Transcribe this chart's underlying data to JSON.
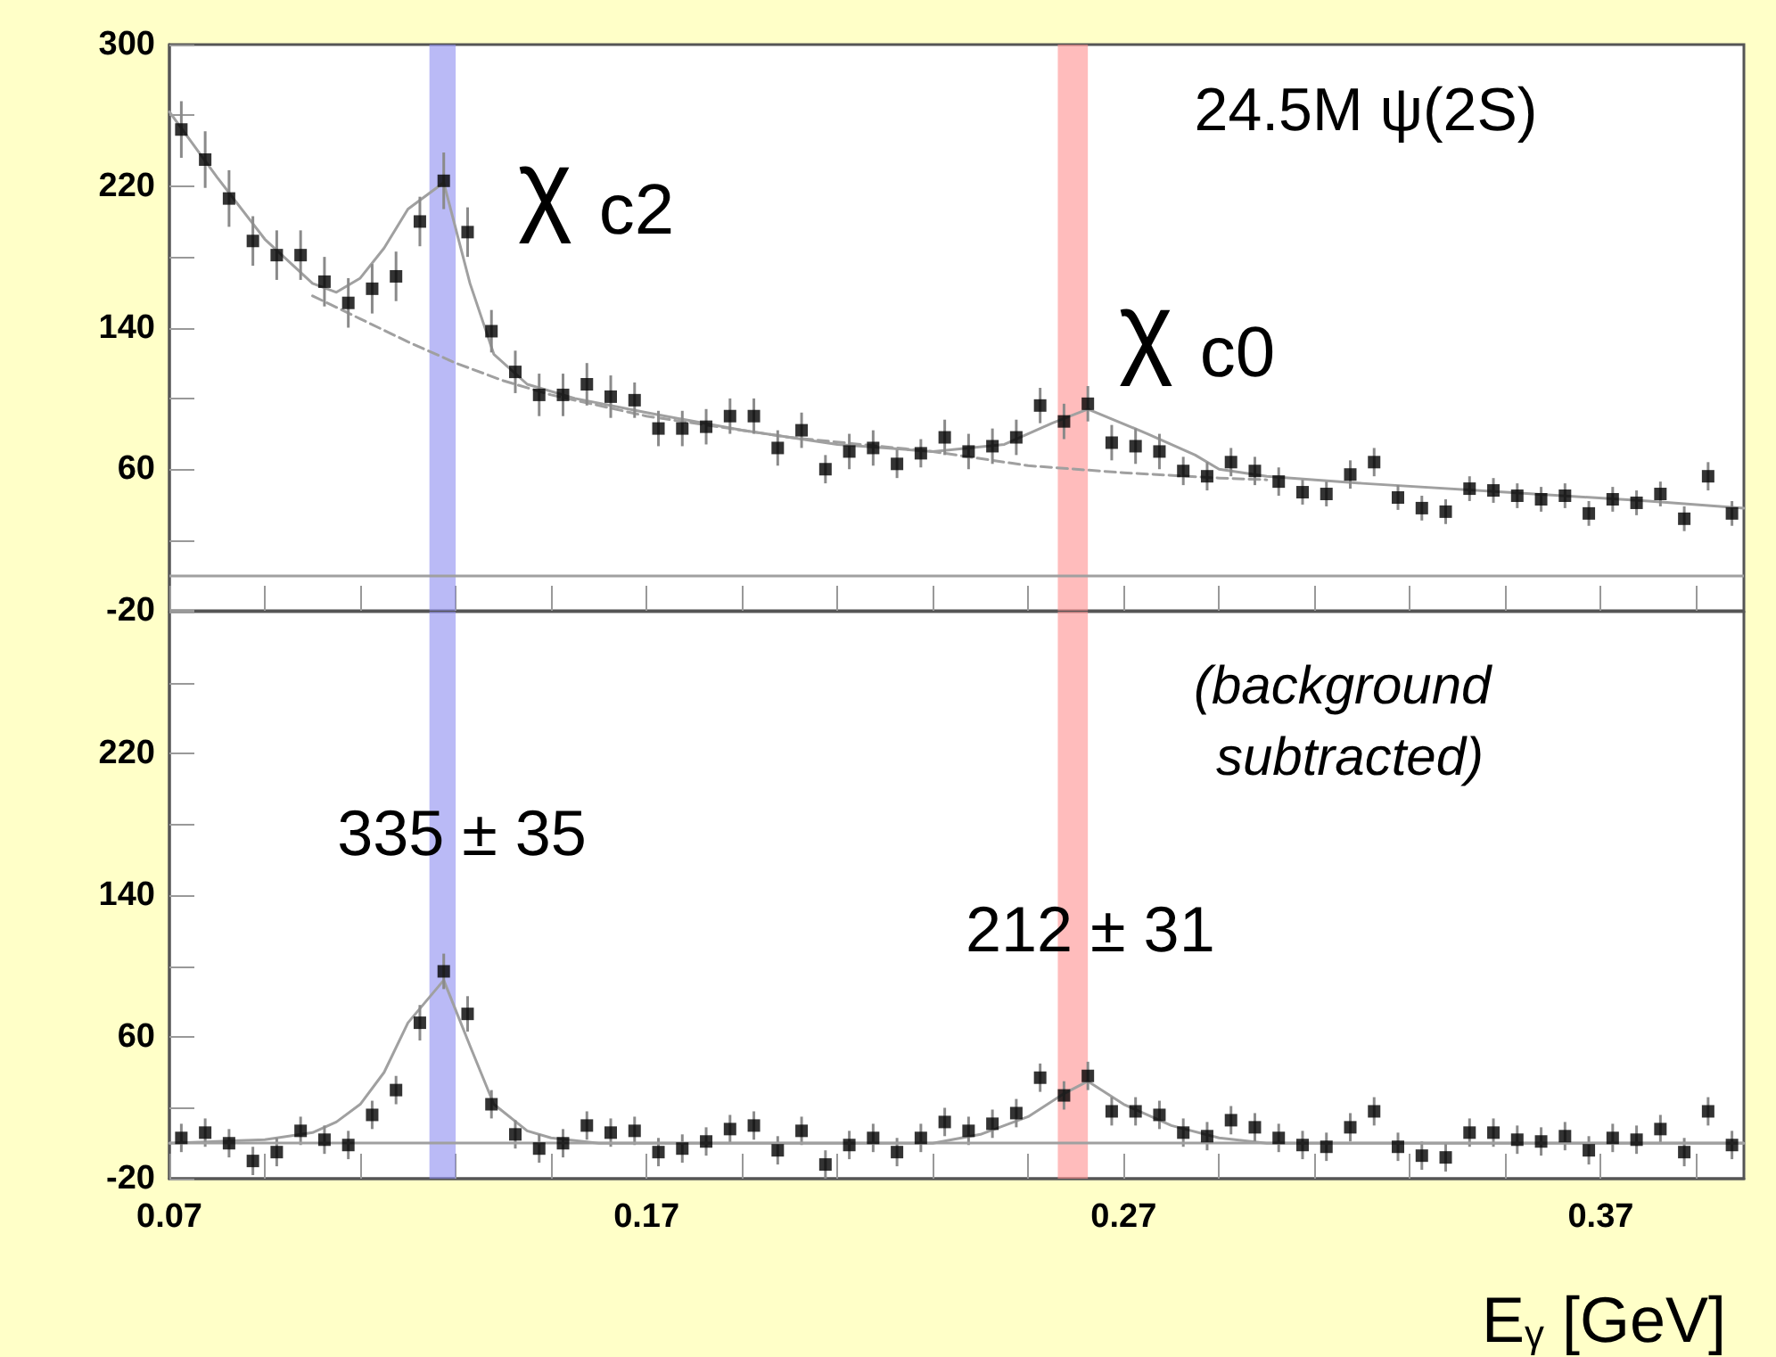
{
  "chart_data": [
    {
      "type": "scatter",
      "marker": "square",
      "tick_labels": "y",
      "x": [
        0.0725,
        0.0775,
        0.0825,
        0.0875,
        0.0925,
        0.0975,
        0.1025,
        0.1075,
        0.1125,
        0.1175,
        0.1225,
        0.1275,
        0.1325,
        0.1375,
        0.1425,
        0.1475,
        0.1525,
        0.1575,
        0.1625,
        0.1675,
        0.1725,
        0.1775,
        0.1825,
        0.1875,
        0.1925,
        0.1975,
        0.2025,
        0.2075,
        0.2125,
        0.2175,
        0.2225,
        0.2275,
        0.2325,
        0.2375,
        0.2425,
        0.2475,
        0.2525,
        0.2575,
        0.2625,
        0.2675,
        0.2725,
        0.2775,
        0.2825,
        0.2875,
        0.2925,
        0.2975,
        0.3025,
        0.3075,
        0.3125,
        0.3175,
        0.3225,
        0.3275,
        0.3325,
        0.3375,
        0.3425,
        0.3475,
        0.3525,
        0.3575,
        0.3625,
        0.3675,
        0.3725,
        0.3775,
        0.3825,
        0.3875,
        0.3925,
        0.3975
      ],
      "series": [
        {
          "color": "#000000",
          "values": [
            252,
            235,
            213,
            189,
            181,
            181,
            166,
            154,
            162,
            169,
            200,
            223,
            194,
            138,
            115,
            102,
            102,
            108,
            101,
            99,
            83,
            83,
            84,
            90,
            90,
            72,
            82,
            60,
            70,
            72,
            63,
            69,
            78,
            70,
            73,
            78,
            96,
            87,
            97,
            75,
            73,
            70,
            59,
            56,
            64,
            59,
            53,
            47,
            46,
            57,
            64,
            44,
            38,
            36,
            49,
            48,
            45,
            43,
            45,
            35,
            43,
            41,
            46,
            32,
            56,
            35
          ],
          "errors": [
            16,
            16,
            16,
            14,
            14,
            14,
            14,
            14,
            14,
            14,
            14,
            16,
            14,
            12,
            12,
            12,
            12,
            12,
            12,
            10,
            10,
            10,
            10,
            10,
            10,
            10,
            10,
            8,
            10,
            10,
            8,
            8,
            10,
            10,
            10,
            10,
            10,
            10,
            10,
            10,
            10,
            10,
            8,
            8,
            8,
            8,
            8,
            7,
            7,
            8,
            8,
            7,
            7,
            7,
            7,
            7,
            7,
            7,
            7,
            7,
            7,
            7,
            7,
            7,
            8,
            7
          ]
        },
        {
          "type": "line",
          "color": "#a0a0a0",
          "marker": "none",
          "line_style": "solid",
          "x": [
            0.07,
            0.08,
            0.09,
            0.1,
            0.105,
            0.11,
            0.115,
            0.12,
            0.1275,
            0.133,
            0.138,
            0.145,
            0.155,
            0.17,
            0.19,
            0.21,
            0.23,
            0.245,
            0.255,
            0.2625,
            0.275,
            0.285,
            0.29,
            0.3,
            0.32,
            0.35,
            0.38,
            0.4
          ],
          "values": [
            262,
            225,
            190,
            165,
            160,
            168,
            185,
            207,
            222,
            165,
            125,
            108,
            100,
            92,
            82,
            74,
            70,
            74,
            86,
            94,
            80,
            68,
            60,
            56,
            52,
            47,
            42,
            38
          ]
        },
        {
          "type": "line",
          "color": "#a0a0a0",
          "marker": "none",
          "line_style": "dashed",
          "x": [
            0.1,
            0.11,
            0.12,
            0.13,
            0.14,
            0.15,
            0.17,
            0.2,
            0.23,
            0.25,
            0.27,
            0.29,
            0.3
          ],
          "values": [
            158,
            145,
            132,
            120,
            110,
            102,
            90,
            78,
            70,
            62,
            58,
            55,
            54
          ]
        }
      ],
      "xlim": [
        0.07,
        0.4
      ],
      "xticks": [
        0.07,
        {
          "value": 0.09,
          "label": null
        },
        {
          "value": 0.11,
          "label": null
        },
        {
          "value": 0.13,
          "label": null
        },
        {
          "value": 0.15,
          "label": null
        },
        0.17,
        {
          "value": 0.19,
          "label": null
        },
        {
          "value": 0.21,
          "label": null
        },
        {
          "value": 0.23,
          "label": null
        },
        {
          "value": 0.25,
          "label": null
        },
        0.27,
        {
          "value": 0.29,
          "label": null
        },
        {
          "value": 0.31,
          "label": null
        },
        {
          "value": 0.33,
          "label": null
        },
        {
          "value": 0.35,
          "label": null
        },
        0.37,
        {
          "value": 0.39,
          "label": null
        }
      ],
      "ylim": [
        -20,
        300
      ],
      "yticks": [
        -20,
        {
          "value": 20,
          "label": null
        },
        60,
        {
          "value": 100,
          "label": null
        },
        140,
        {
          "value": 180,
          "label": null
        },
        220,
        {
          "value": 260,
          "label": null
        },
        300
      ],
      "ref_lines": [
        {
          "axis": "y",
          "value": 0,
          "color": "#a0a0a0"
        }
      ],
      "bands": [
        {
          "axis": "x",
          "from": 0.1245,
          "to": 0.13,
          "color": "#8c8cf0"
        },
        {
          "axis": "x",
          "from": 0.2562,
          "to": 0.2625,
          "color": "#ff9090"
        }
      ],
      "annotations": [
        "24.5M ψ(2S)",
        "χ$_{c2}$",
        "χ$_{c0}$"
      ]
    },
    {
      "type": "scatter",
      "marker": "square",
      "xlabel": "E$_{γ}$ [GeV]",
      "x": [
        0.0725,
        0.0775,
        0.0825,
        0.0875,
        0.0925,
        0.0975,
        0.1025,
        0.1075,
        0.1125,
        0.1175,
        0.1225,
        0.1275,
        0.1325,
        0.1375,
        0.1425,
        0.1475,
        0.1525,
        0.1575,
        0.1625,
        0.1675,
        0.1725,
        0.1775,
        0.1825,
        0.1875,
        0.1925,
        0.1975,
        0.2025,
        0.2075,
        0.2125,
        0.2175,
        0.2225,
        0.2275,
        0.2325,
        0.2375,
        0.2425,
        0.2475,
        0.2525,
        0.2575,
        0.2625,
        0.2675,
        0.2725,
        0.2775,
        0.2825,
        0.2875,
        0.2925,
        0.2975,
        0.3025,
        0.3075,
        0.3125,
        0.3175,
        0.3225,
        0.3275,
        0.3325,
        0.3375,
        0.3425,
        0.3475,
        0.3525,
        0.3575,
        0.3625,
        0.3675,
        0.3725,
        0.3775,
        0.3825,
        0.3875,
        0.3925,
        0.3975
      ],
      "series": [
        {
          "color": "#000000",
          "values": [
            3,
            6,
            0,
            -10,
            -5,
            7,
            2,
            -1,
            16,
            30,
            68,
            97,
            73,
            22,
            5,
            -3,
            0,
            10,
            6,
            7,
            -5,
            -3,
            1,
            8,
            10,
            -4,
            7,
            -12,
            -1,
            3,
            -5,
            3,
            12,
            7,
            11,
            17,
            37,
            27,
            38,
            18,
            18,
            16,
            6,
            4,
            13,
            9,
            3,
            -1,
            -2,
            9,
            18,
            -2,
            -7,
            -8,
            6,
            6,
            2,
            1,
            4,
            -4,
            3,
            2,
            8,
            -5,
            18,
            -1
          ],
          "errors": [
            8,
            8,
            8,
            8,
            8,
            8,
            8,
            8,
            8,
            8,
            10,
            10,
            10,
            8,
            8,
            8,
            8,
            8,
            8,
            8,
            8,
            8,
            8,
            8,
            8,
            8,
            8,
            8,
            8,
            8,
            8,
            8,
            8,
            8,
            8,
            8,
            8,
            8,
            8,
            8,
            8,
            8,
            8,
            8,
            8,
            8,
            8,
            8,
            8,
            8,
            8,
            8,
            8,
            8,
            8,
            8,
            8,
            8,
            8,
            8,
            8,
            8,
            8,
            8,
            8,
            8
          ]
        },
        {
          "type": "line",
          "color": "#a0a0a0",
          "marker": "none",
          "line_style": "solid",
          "x": [
            0.07,
            0.09,
            0.1,
            0.105,
            0.11,
            0.115,
            0.12,
            0.1275,
            0.133,
            0.138,
            0.145,
            0.15,
            0.16,
            0.23,
            0.24,
            0.25,
            0.2575,
            0.2625,
            0.27,
            0.28,
            0.29,
            0.3,
            0.4
          ],
          "values": [
            0,
            2,
            6,
            12,
            22,
            40,
            68,
            92,
            55,
            22,
            7,
            3,
            0,
            0,
            5,
            15,
            28,
            35,
            22,
            10,
            3,
            0,
            0
          ]
        }
      ],
      "xlim": [
        0.07,
        0.4
      ],
      "xticks": [
        0.07,
        {
          "value": 0.09,
          "label": null
        },
        {
          "value": 0.11,
          "label": null
        },
        {
          "value": 0.13,
          "label": null
        },
        {
          "value": 0.15,
          "label": null
        },
        0.17,
        {
          "value": 0.19,
          "label": null
        },
        {
          "value": 0.21,
          "label": null
        },
        {
          "value": 0.23,
          "label": null
        },
        {
          "value": 0.25,
          "label": null
        },
        0.27,
        {
          "value": 0.29,
          "label": null
        },
        {
          "value": 0.31,
          "label": null
        },
        {
          "value": 0.33,
          "label": null
        },
        {
          "value": 0.35,
          "label": null
        },
        0.37,
        {
          "value": 0.39,
          "label": null
        }
      ],
      "ylim": [
        -20,
        300
      ],
      "yticks": [
        -20,
        {
          "value": 20,
          "label": null
        },
        60,
        {
          "value": 100,
          "label": null
        },
        140,
        {
          "value": 180,
          "label": null
        },
        220,
        {
          "value": 260,
          "label": null
        },
        {
          "value": 300,
          "label": null
        }
      ],
      "ref_lines": [
        {
          "axis": "y",
          "value": 0,
          "color": "#a0a0a0"
        }
      ],
      "bands": [
        {
          "axis": "x",
          "from": 0.1245,
          "to": 0.13,
          "color": "#8c8cf0"
        },
        {
          "axis": "x",
          "from": 0.2562,
          "to": 0.2625,
          "color": "#ff9090"
        }
      ],
      "annotations": [
        "(background subtracted)",
        {
          "text": "335 ± 35",
          "x": 0.1313,
          "y": 175
        },
        {
          "text": "212 ± 31",
          "x": 0.263,
          "y": 121
        }
      ]
    }
  ]
}
